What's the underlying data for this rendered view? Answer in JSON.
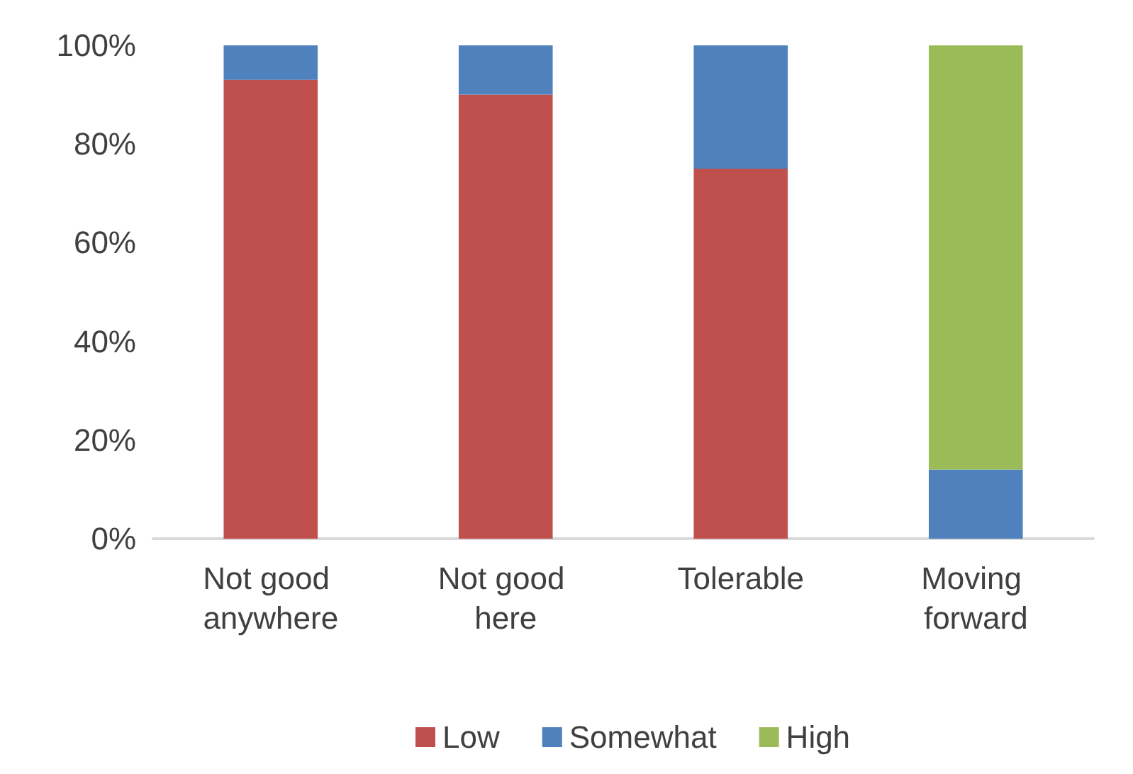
{
  "chart_data": {
    "type": "bar",
    "stacked": true,
    "categories": [
      "Not good anywhere",
      "Not good here",
      "Tolerable",
      "Moving forward"
    ],
    "series": [
      {
        "name": "Low",
        "color": "#c0504d",
        "values": [
          93,
          90,
          75,
          0
        ]
      },
      {
        "name": "Somewhat",
        "color": "#4f81bd",
        "values": [
          7,
          10,
          25,
          14
        ]
      },
      {
        "name": "High",
        "color": "#9bbb59",
        "values": [
          0,
          0,
          0,
          86
        ]
      }
    ],
    "ylim": [
      0,
      100
    ],
    "yticks": [
      {
        "value": 0,
        "label": "0%"
      },
      {
        "value": 20,
        "label": "20%"
      },
      {
        "value": 40,
        "label": "40%"
      },
      {
        "value": 60,
        "label": "60%"
      },
      {
        "value": 80,
        "label": "80%"
      },
      {
        "value": 100,
        "label": "100%"
      }
    ],
    "grid": false,
    "legend": "bottom"
  }
}
